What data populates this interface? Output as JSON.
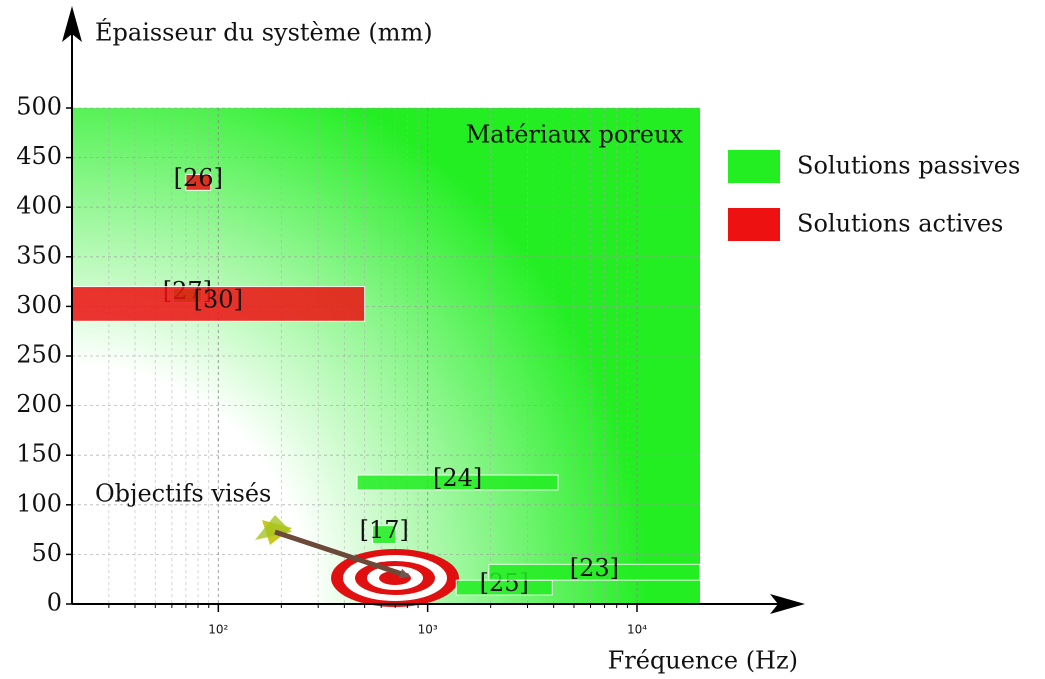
{
  "chart_data": {
    "type": "range",
    "y_label": "Épaisseur du système (mm)",
    "x_label": "Fréquence (Hz)",
    "x_log": true,
    "xlim": [
      20,
      20000
    ],
    "ylim": [
      0,
      500
    ],
    "xticks": [
      {
        "value": 100,
        "label": "10²"
      },
      {
        "value": 1000,
        "label": "10³"
      },
      {
        "value": 10000,
        "label": "10⁴"
      }
    ],
    "xminor_ticks": [
      30,
      40,
      50,
      60,
      70,
      80,
      90,
      200,
      300,
      400,
      500,
      600,
      700,
      800,
      900,
      2000,
      3000,
      4000,
      5000,
      6000,
      7000,
      8000,
      9000
    ],
    "yticks": [
      0,
      50,
      100,
      150,
      200,
      250,
      300,
      350,
      400,
      450,
      500
    ],
    "grid": true,
    "legend": "right",
    "annotations": [
      "Matériaux poreux",
      "Objectifs visés"
    ],
    "series": [
      {
        "name": "Solutions passives",
        "color": "#22ee22",
        "items": [
          {
            "label": "[27]",
            "x": [
              61,
              83
            ],
            "y": [
              304,
              318
            ]
          },
          {
            "label": "[24]",
            "x": [
              460,
              4200
            ],
            "y": [
              115,
              130
            ]
          },
          {
            "label": "[17]",
            "x": [
              546,
              705
            ],
            "y": [
              61,
              79
            ]
          },
          {
            "label": "[25]",
            "x": [
              1370,
              3940
            ],
            "y": [
              9,
              24
            ]
          },
          {
            "label": "[23]",
            "x": [
              1960,
              20000
            ],
            "y": [
              24,
              40
            ]
          }
        ]
      },
      {
        "name": "Solutions actives",
        "color": "#ee1111",
        "items": [
          {
            "label": "[26]",
            "x": [
              70,
              92
            ],
            "y": [
              417,
              433
            ]
          },
          {
            "label": "[30]",
            "x": [
              20,
              500
            ],
            "y": [
              285,
              320
            ]
          }
        ]
      }
    ]
  }
}
